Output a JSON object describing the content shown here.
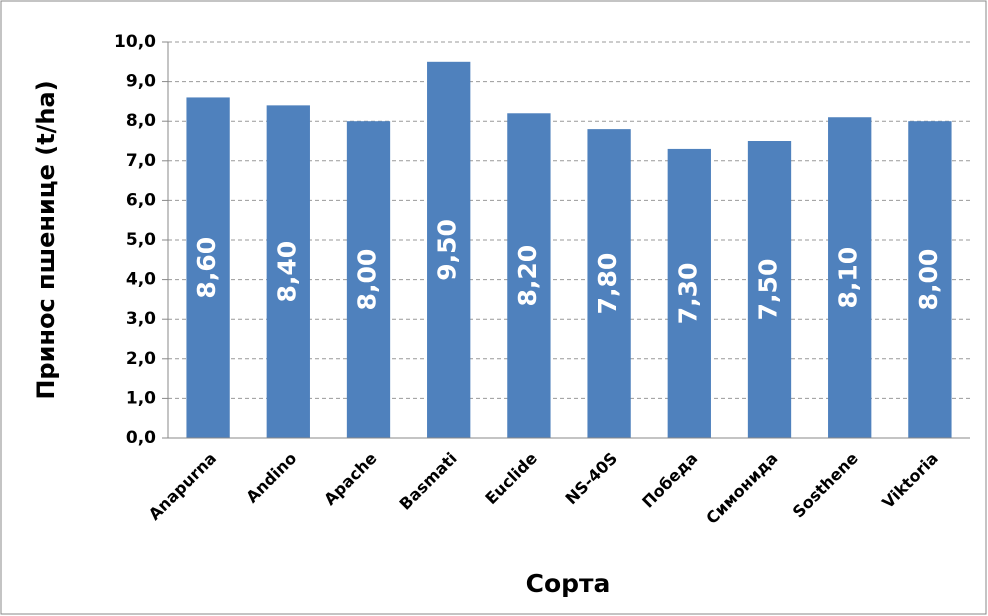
{
  "chart_data": {
    "type": "bar",
    "y_label": "Принос пшенице (t/ha)",
    "x_label": "Сорта",
    "categories": [
      "Anapurna",
      "Andino",
      "Apache",
      "Basmati",
      "Euclide",
      "NS-40S",
      "Победа",
      "Симонида",
      "Sosthene",
      "Viktoria"
    ],
    "values": [
      8.6,
      8.4,
      8.0,
      9.5,
      8.2,
      7.8,
      7.3,
      7.5,
      8.1,
      8.0
    ],
    "value_labels": [
      "8,60",
      "8,40",
      "8,00",
      "9,50",
      "8,20",
      "7,80",
      "7,30",
      "7,50",
      "8,10",
      "8,00"
    ],
    "color": "#4f81bd",
    "ylim": [
      0,
      10
    ],
    "yticks": [
      {
        "value": 0,
        "label": "0,0"
      },
      {
        "value": 1,
        "label": "1,0"
      },
      {
        "value": 2,
        "label": "2,0"
      },
      {
        "value": 3,
        "label": "3,0"
      },
      {
        "value": 4,
        "label": "4,0"
      },
      {
        "value": 5,
        "label": "5,0"
      },
      {
        "value": 6,
        "label": "6,0"
      },
      {
        "value": 7,
        "label": "7,0"
      },
      {
        "value": 8,
        "label": "8,0"
      },
      {
        "value": 9,
        "label": "9,0"
      },
      {
        "value": 10,
        "label": "10,0"
      }
    ],
    "grid": true
  }
}
